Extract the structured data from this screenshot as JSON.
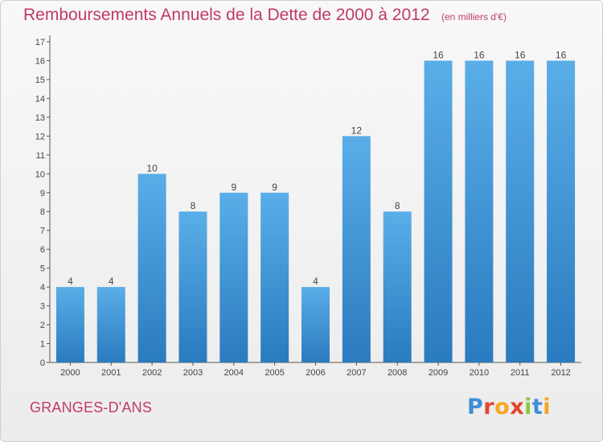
{
  "header": {
    "title": "Remboursements Annuels de la Dette de 2000 à 2012",
    "unit": "(en milliers d'€)"
  },
  "footer": {
    "place": "GRANGES-D'ANS",
    "brand": "Proxiti"
  },
  "colors": {
    "bar_top": "#5aaee8",
    "bar_bottom": "#2a7bbf",
    "accent": "#c0396b",
    "brand_letters": [
      "#3b8fd9",
      "#e2452d",
      "#f5a623",
      "#e2452d",
      "#8cc63f",
      "#3b8fd9",
      "#f5a623"
    ]
  },
  "chart_data": {
    "type": "bar",
    "title": "Remboursements Annuels de la Dette de 2000 à 2012",
    "categories": [
      "2000",
      "2001",
      "2002",
      "2003",
      "2004",
      "2005",
      "2006",
      "2007",
      "2008",
      "2009",
      "2010",
      "2011",
      "2012"
    ],
    "values": [
      4,
      4,
      10,
      8,
      9,
      9,
      4,
      12,
      8,
      16,
      16,
      16,
      16
    ],
    "data_labels": [
      "4",
      "4",
      "10",
      "8",
      "9",
      "9",
      "4",
      "12",
      "8",
      "16",
      "16",
      "16",
      "16"
    ],
    "yticks": [
      "0",
      "1",
      "2",
      "3",
      "4",
      "5",
      "6",
      "7",
      "8",
      "9",
      "10",
      "11",
      "12",
      "13",
      "14",
      "15",
      "16",
      "17"
    ],
    "ylim": [
      0,
      17
    ],
    "xlabel": "",
    "ylabel": "",
    "grid": false,
    "legend": "none"
  }
}
